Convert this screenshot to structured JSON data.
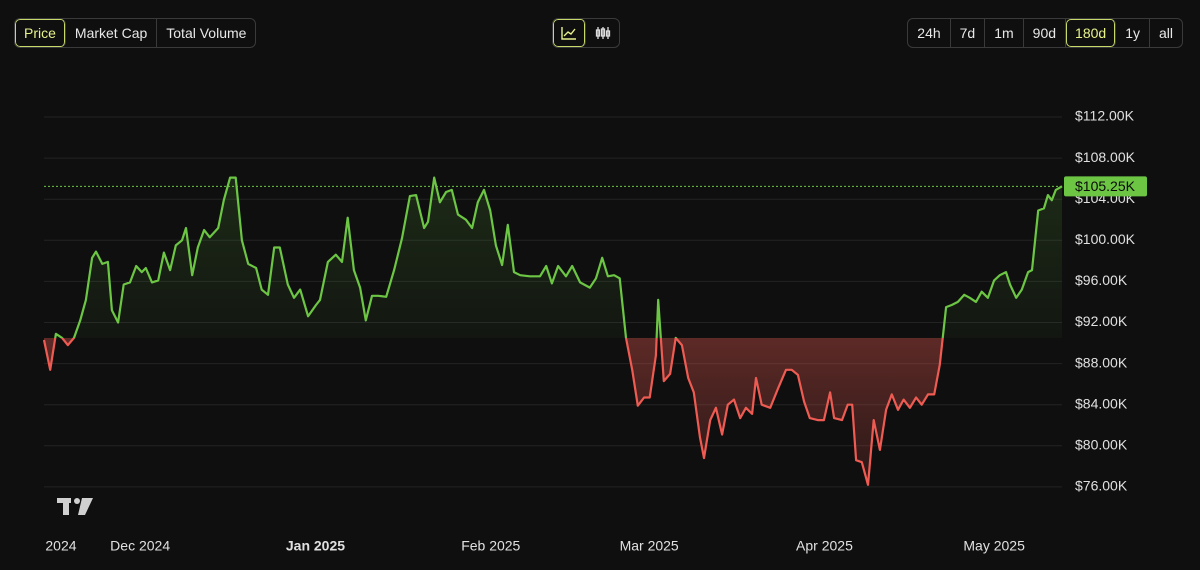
{
  "tabs": {
    "items": [
      "Price",
      "Market Cap",
      "Total Volume"
    ],
    "active": 0
  },
  "ranges": {
    "items": [
      "24h",
      "7d",
      "1m",
      "90d",
      "180d",
      "1y",
      "all"
    ],
    "active": 4
  },
  "chart_data": {
    "type": "line",
    "x": [
      0,
      1.1,
      2.1,
      3.2,
      4.2,
      5.3,
      6.4,
      7.4,
      8.5,
      9.2,
      10.3,
      11.3,
      12.0,
      13.1,
      14.1,
      15.2,
      16.3,
      17.3,
      18.0,
      19.1,
      20.2,
      21.2,
      22.3,
      23.3,
      24.4,
      25.1,
      26.2,
      27.2,
      28.3,
      29.3,
      30.8,
      31.8,
      32.9,
      33.9,
      35.0,
      36.1,
      37.5,
      38.5,
      39.6,
      40.7,
      41.7,
      43.1,
      44.2,
      45.3,
      46.7,
      48.1,
      48.8,
      50.2,
      51.6,
      52.7,
      53.7,
      54.8,
      55.9,
      56.9,
      58.0,
      59.1,
      60.5,
      61.9,
      63.3,
      64.7,
      65.8,
      67.2,
      67.9,
      69.0,
      70.0,
      71.1,
      72.1,
      73.2,
      74.6,
      75.7,
      76.7,
      77.8,
      78.9,
      79.9,
      81.0,
      82.0,
      83.1,
      84.2,
      85.9,
      87.7,
      88.8,
      89.8,
      90.9,
      92.3,
      93.4,
      94.8,
      96.5,
      97.6,
      98.7,
      99.7,
      100.8,
      101.8,
      102.9,
      104.0,
      105.0,
      106.1,
      107.1,
      108.2,
      108.6,
      109.6,
      110.7,
      111.7,
      112.8,
      113.9,
      114.9,
      116.0,
      116.7,
      117.8,
      118.8,
      119.9,
      120.9,
      122.0,
      123.1,
      124.1,
      125.2,
      125.9,
      126.9,
      128.4,
      129.8,
      131.2,
      132.2,
      133.3,
      134.4,
      135.4,
      136.8,
      137.9,
      139.0,
      139.7,
      141.1,
      142.1,
      142.9,
      143.6,
      144.6,
      145.7,
      146.7,
      147.8,
      148.9,
      149.9,
      151.0,
      152.0,
      153.1,
      154.2,
      155.2,
      156.3,
      157.4,
      158.4,
      159.5,
      160.5,
      161.6,
      162.7,
      163.7,
      164.8,
      165.8,
      166.9,
      168.0,
      169.0,
      170.1,
      170.8,
      171.9,
      172.9,
      174.0,
      174.7,
      175.8,
      176.8,
      177.5,
      178.2,
      178.9,
      180.0
    ],
    "series": [
      {
        "name": "Price",
        "values": [
          90300,
          87400,
          90900,
          90500,
          89800,
          90500,
          92200,
          94200,
          98300,
          98900,
          97700,
          97900,
          93200,
          92000,
          95700,
          95900,
          97500,
          96900,
          97300,
          95900,
          96100,
          98800,
          97100,
          99500,
          100000,
          101200,
          96600,
          99300,
          101000,
          100300,
          101200,
          103900,
          106100,
          106100,
          100000,
          97700,
          97300,
          95200,
          94700,
          99300,
          99300,
          95700,
          94400,
          95200,
          92600,
          93700,
          94200,
          97900,
          98600,
          97900,
          102200,
          97100,
          95400,
          92200,
          94600,
          94600,
          94500,
          97100,
          100200,
          104300,
          104400,
          101200,
          101800,
          106100,
          103700,
          104700,
          104900,
          102500,
          102000,
          101200,
          103700,
          104900,
          102900,
          99500,
          97600,
          101500,
          96900,
          96600,
          96500,
          96500,
          97500,
          95800,
          97500,
          96500,
          97500,
          95900,
          95400,
          96300,
          98300,
          96500,
          96600,
          96300,
          90500,
          87400,
          83900,
          84700,
          84700,
          88800,
          94200,
          86300,
          87000,
          90500,
          89800,
          86600,
          85200,
          80800,
          78800,
          82500,
          83700,
          81100,
          84000,
          84500,
          82700,
          83700,
          83100,
          86600,
          84000,
          83700,
          85600,
          87400,
          87400,
          86900,
          84300,
          82700,
          82500,
          82500,
          85200,
          82700,
          82500,
          84000,
          84000,
          78600,
          78400,
          76200,
          82500,
          79600,
          83500,
          85000,
          83500,
          84500,
          83700,
          84700,
          84000,
          85000,
          85000,
          87900,
          93500,
          93700,
          94000,
          94700,
          94400,
          94000,
          95000,
          94400,
          96100,
          96600,
          96900,
          95700,
          94400,
          95200,
          96900,
          97100,
          102900,
          103100,
          104400,
          103900,
          104900,
          105250
        ]
      }
    ],
    "up_color": "#6cc644",
    "down_color": "#ee5b52",
    "baseline": 90500,
    "last_price": {
      "value": 105250,
      "label": "$105.25K"
    },
    "xlim": [
      0,
      180
    ],
    "xticks": [
      {
        "value": 3,
        "label": "2024"
      },
      {
        "value": 17,
        "label": "Dec 2024"
      },
      {
        "value": 48,
        "label": "Jan 2025",
        "bold": true
      },
      {
        "value": 79,
        "label": "Feb 2025"
      },
      {
        "value": 107,
        "label": "Mar 2025"
      },
      {
        "value": 138,
        "label": "Apr 2025"
      },
      {
        "value": 168,
        "label": "May 2025"
      }
    ],
    "ylim": [
      72000,
      115600
    ],
    "yticks": [
      {
        "value": 76000,
        "label": "$76.00K"
      },
      {
        "value": 80000,
        "label": "$80.00K"
      },
      {
        "value": 84000,
        "label": "$84.00K"
      },
      {
        "value": 88000,
        "label": "$88.00K"
      },
      {
        "value": 92000,
        "label": "$92.00K"
      },
      {
        "value": 96000,
        "label": "$96.00K"
      },
      {
        "value": 100000,
        "label": "$100.00K"
      },
      {
        "value": 104000,
        "label": "$104.00K"
      },
      {
        "value": 108000,
        "label": "$108.00K"
      },
      {
        "value": 112000,
        "label": "$112.00K"
      }
    ],
    "grid": true
  }
}
